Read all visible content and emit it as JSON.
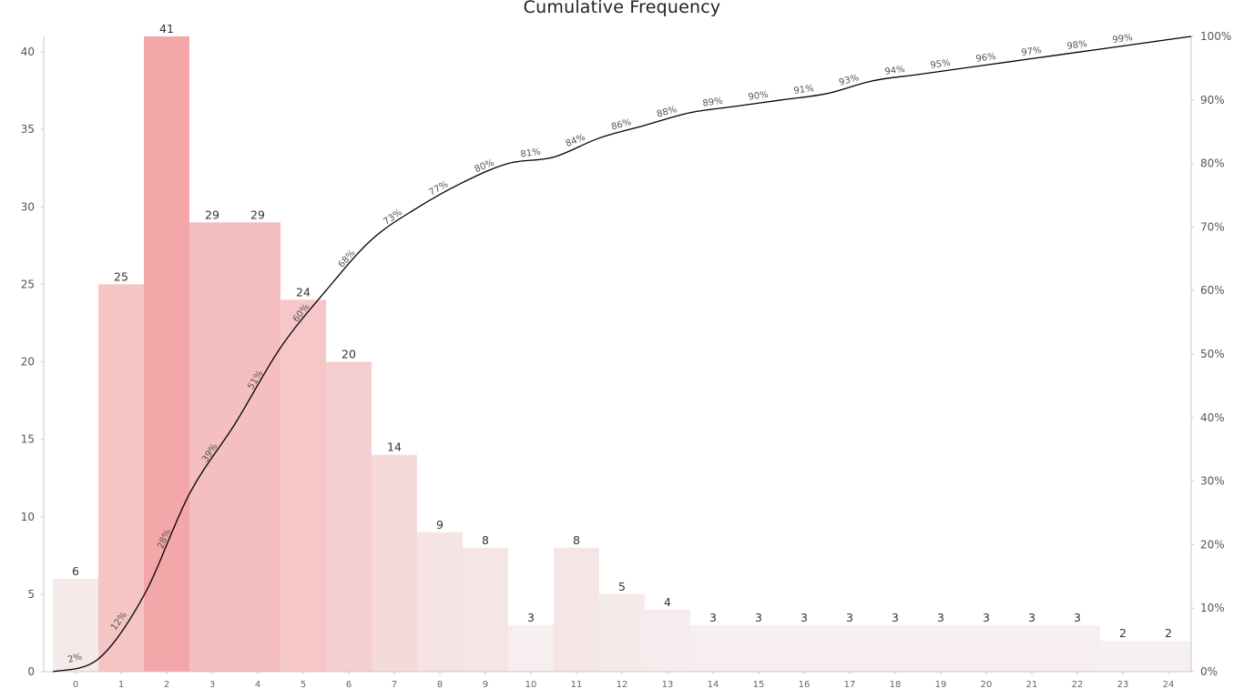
{
  "chart_data": {
    "type": "bar",
    "title": "Cumulative Frequency",
    "categories": [
      "0",
      "1",
      "2",
      "3",
      "4",
      "5",
      "6",
      "7",
      "8",
      "9",
      "10",
      "11",
      "12",
      "13",
      "14",
      "15",
      "16",
      "17",
      "18",
      "19",
      "20",
      "21",
      "22",
      "23",
      "24"
    ],
    "series": [
      {
        "values": [
          6,
          25,
          41,
          29,
          29,
          24,
          20,
          14,
          9,
          8,
          3,
          8,
          5,
          4,
          3,
          3,
          3,
          3,
          3,
          3,
          3,
          3,
          3,
          2,
          2
        ]
      },
      {
        "type": "line",
        "axis": "right",
        "values": [
          2,
          12,
          28,
          39,
          51,
          60,
          68,
          73,
          77,
          80,
          81,
          84,
          86,
          88,
          89,
          90,
          91,
          93,
          94,
          95,
          96,
          97,
          98,
          99,
          100
        ],
        "labels": [
          "2%",
          "12%",
          "28%",
          "39%",
          "51%",
          "60%",
          "68%",
          "73%",
          "77%",
          "80%",
          "81%",
          "84%",
          "86%",
          "88%",
          "89%",
          "90%",
          "91%",
          "93%",
          "94%",
          "95%",
          "96%",
          "97%",
          "98%",
          "99%",
          ""
        ]
      }
    ],
    "ylim": [
      0,
      41
    ],
    "y2lim": [
      0,
      100
    ],
    "yticks": [
      "0",
      "5",
      "10",
      "15",
      "20",
      "25",
      "30",
      "35",
      "40"
    ],
    "y2ticks": [
      "0%",
      "10%",
      "20%",
      "30%",
      "40%",
      "50%",
      "60%",
      "70%",
      "80%",
      "90%",
      "100%"
    ],
    "bar_color": "#f4a7a9",
    "line_color": "#000000",
    "grid": false,
    "legend": "none"
  }
}
